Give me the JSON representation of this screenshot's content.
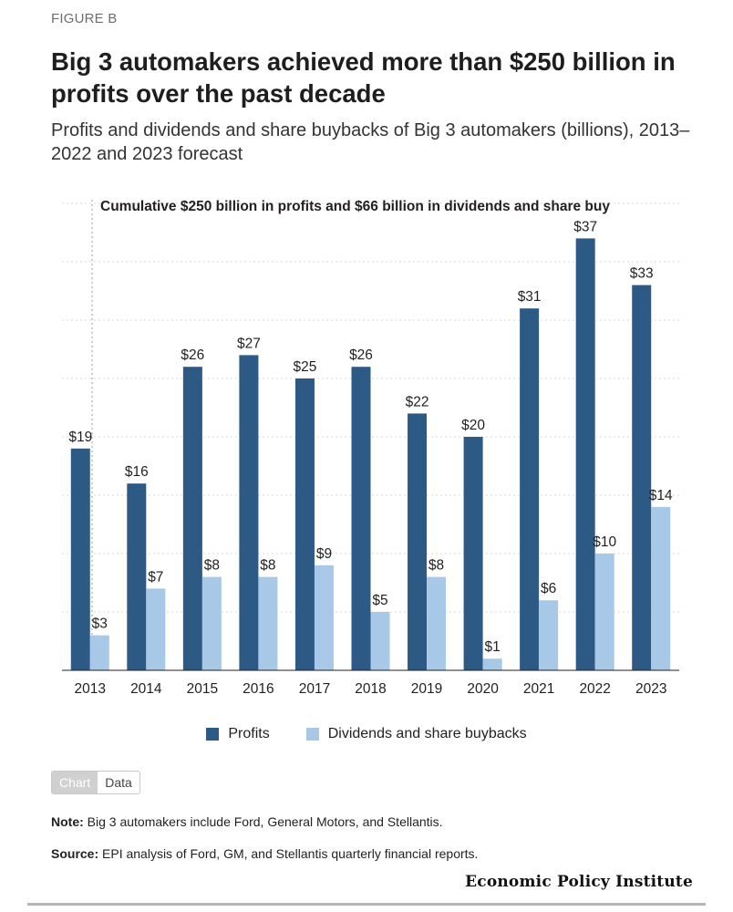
{
  "figure_label": "FIGURE B",
  "title": "Big 3 automakers achieved more than $250 billion in profits over the past decade",
  "subtitle": "Profits and dividends and share buybacks of Big 3 automakers (billions), 2013–2022 and 2023 forecast",
  "chart_data": {
    "type": "bar",
    "categories": [
      "2013",
      "2014",
      "2015",
      "2016",
      "2017",
      "2018",
      "2019",
      "2020",
      "2021",
      "2022",
      "2023"
    ],
    "series": [
      {
        "name": "Profits",
        "color": "#2c5a85",
        "values": [
          19,
          16,
          26,
          27,
          25,
          26,
          22,
          20,
          31,
          37,
          33
        ],
        "labels": [
          "$19",
          "$16",
          "$26",
          "$27",
          "$25",
          "$26",
          "$22",
          "$20",
          "$31",
          "$37",
          "$33"
        ]
      },
      {
        "name": "Dividends and share buybacks",
        "color": "#a7c8e6",
        "values": [
          3,
          7,
          8,
          8,
          9,
          5,
          8,
          1,
          6,
          10,
          14
        ],
        "labels": [
          "$3",
          "$7",
          "$8",
          "$8",
          "$9",
          "$5",
          "$8",
          "$1",
          "$6",
          "$10",
          "$14"
        ]
      }
    ],
    "annotation": "Cumulative $250 billion in profits and $66 billion in dividends and share buy",
    "ylim": [
      0,
      40
    ],
    "grid": true,
    "legend_position": "bottom"
  },
  "toggle": {
    "chart_label": "Chart",
    "data_label": "Data"
  },
  "note": {
    "label": "Note:",
    "text": " Big 3 automakers include Ford, General Motors, and Stellantis."
  },
  "source": {
    "label": "Source:",
    "text": " EPI analysis of Ford, GM, and Stellantis quarterly financial reports."
  },
  "brand": "Economic Policy Institute"
}
